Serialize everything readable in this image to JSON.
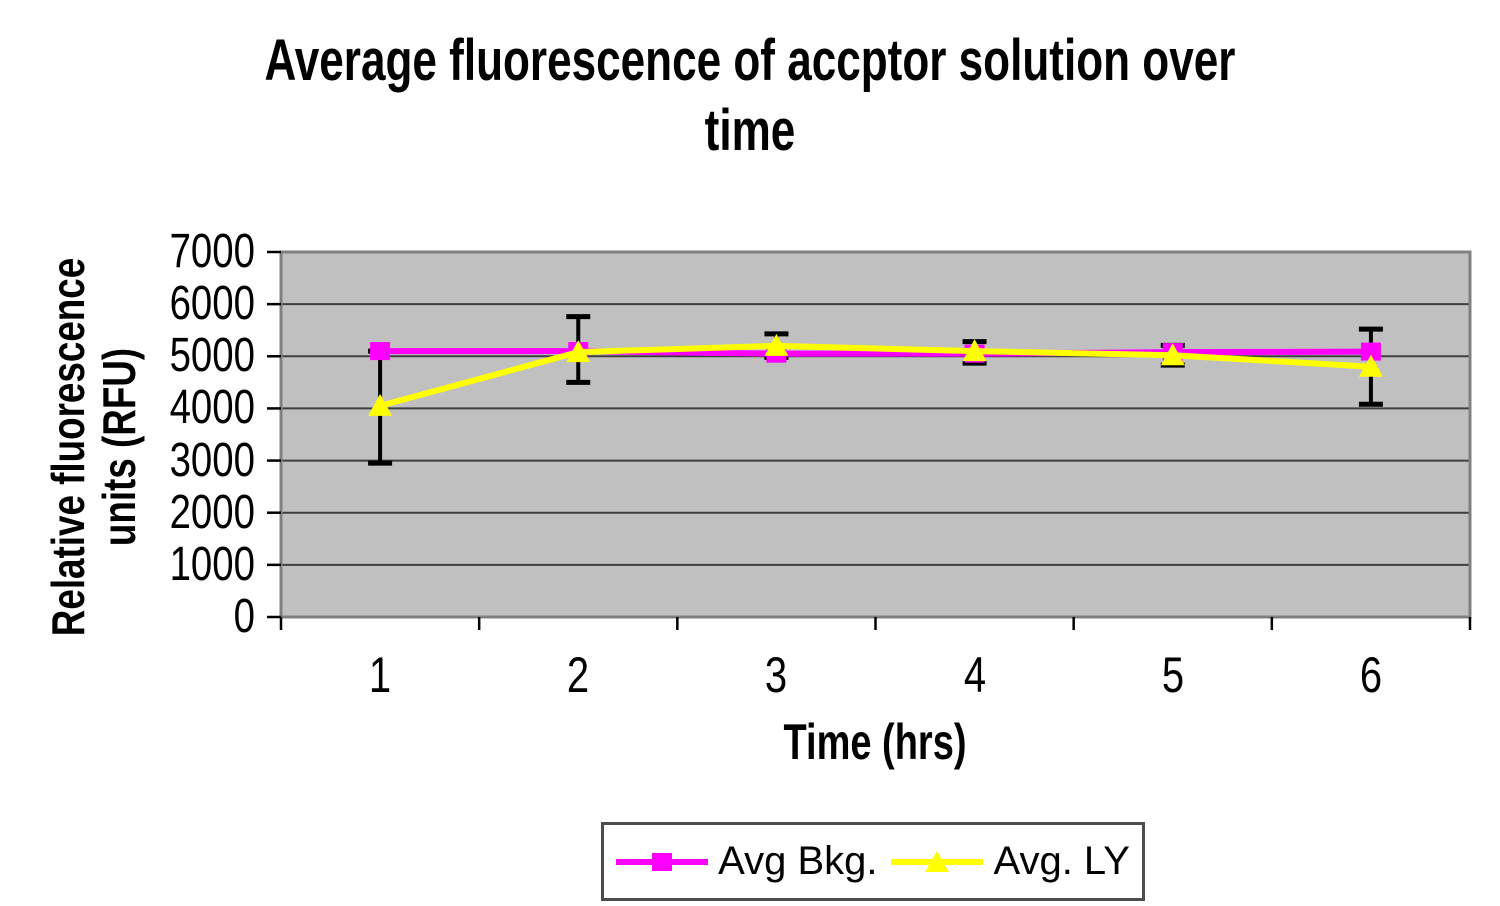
{
  "chart_data": {
    "type": "line",
    "title": {
      "line1": "Average fluorescence of accptor solution over",
      "line2": "time"
    },
    "xlabel": "Time (hrs)",
    "ylabel": {
      "line1": "Relative fluorescence",
      "line2": "units (RFU)"
    },
    "categories": [
      "1",
      "2",
      "3",
      "4",
      "5",
      "6"
    ],
    "ylim": [
      0,
      7000
    ],
    "yticks": [
      0,
      1000,
      2000,
      3000,
      4000,
      5000,
      6000,
      7000
    ],
    "grid": "horizontal-gridlines",
    "legend_position": "bottom",
    "colors": {
      "page_bg": "#ffffff",
      "plot_bg": "#c0c0c0",
      "gridline": "#3f3f3f",
      "plot_border": "#808080",
      "axis_tick": "#000000",
      "error_bar": "#000000",
      "legend_border": "#4d4d4d",
      "text": "#000000"
    },
    "series": [
      {
        "name": "Avg Bkg.",
        "color": "#ff00ff",
        "marker": "square",
        "values": [
          5100,
          5100,
          5050,
          5050,
          5080,
          5090
        ]
      },
      {
        "name": "Avg. LY",
        "color": "#ffff00",
        "marker": "triangle",
        "values": [
          4050,
          5080,
          5200,
          5100,
          5020,
          4800
        ],
        "error_bar_top": [
          5100,
          5760,
          5430,
          5280,
          5210,
          5520
        ],
        "error_bar_bottom": [
          2950,
          4500,
          4980,
          4870,
          4830,
          4080
        ]
      }
    ]
  }
}
